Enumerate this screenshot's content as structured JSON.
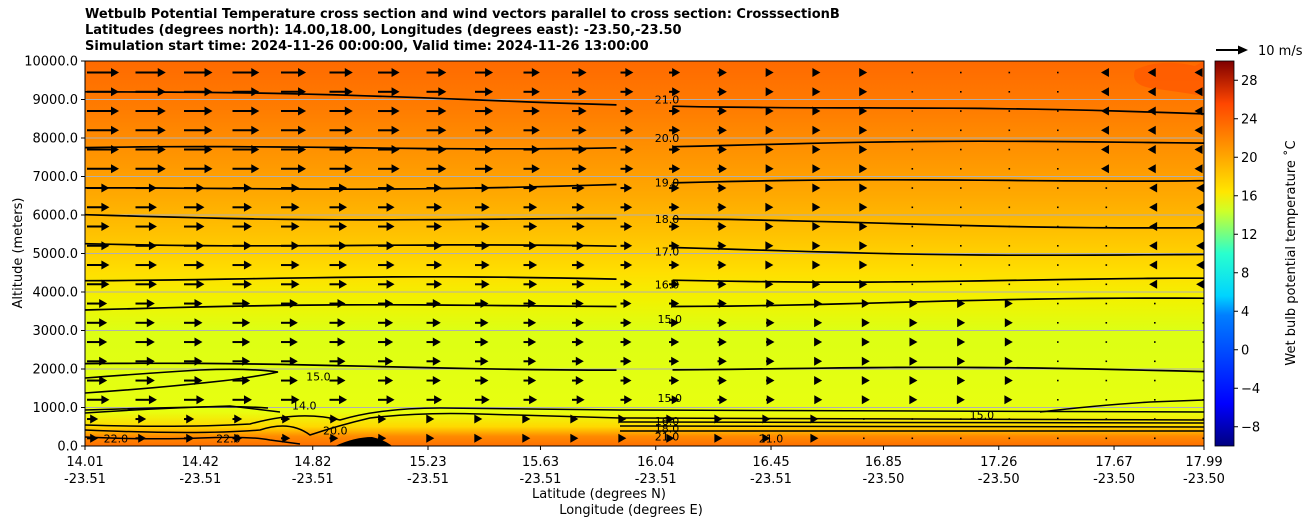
{
  "chart_data": {
    "type": "heatmap",
    "title_lines": [
      "Wetbulb Potential Temperature cross section and wind vectors parallel to cross section: CrosssectionB",
      "Latitudes (degrees north): 14.00,18.00, Longitudes (degrees east): -23.50,-23.50",
      "Simulation start time: 2024-11-26 00:00:00, Valid time: 2024-11-26 13:00:00"
    ],
    "ylabel": "Altitude (meters)",
    "xlabel_lat": "Latitude (degrees N)",
    "xlabel_lon": "Longitude (degrees E)",
    "ylim": [
      0,
      10000
    ],
    "y_ticks": [
      0,
      1000,
      2000,
      3000,
      4000,
      5000,
      6000,
      7000,
      8000,
      9000,
      10000
    ],
    "y_tick_labels": [
      "0.0",
      "1000.0",
      "2000.0",
      "3000.0",
      "4000.0",
      "5000.0",
      "6000.0",
      "7000.0",
      "8000.0",
      "9000.0",
      "10000.0"
    ],
    "x_ticks": [
      {
        "lat": "14.01",
        "lon": "-23.51",
        "pos": 14.01
      },
      {
        "lat": "14.42",
        "lon": "-23.51",
        "pos": 14.42
      },
      {
        "lat": "14.82",
        "lon": "-23.51",
        "pos": 14.82
      },
      {
        "lat": "15.23",
        "lon": "-23.51",
        "pos": 15.23
      },
      {
        "lat": "15.63",
        "lon": "-23.51",
        "pos": 15.63
      },
      {
        "lat": "16.04",
        "lon": "-23.51",
        "pos": 16.04
      },
      {
        "lat": "16.45",
        "lon": "-23.51",
        "pos": 16.45
      },
      {
        "lat": "16.85",
        "lon": "-23.50",
        "pos": 16.85
      },
      {
        "lat": "17.26",
        "lon": "-23.50",
        "pos": 17.26
      },
      {
        "lat": "17.67",
        "lon": "-23.50",
        "pos": 17.67
      },
      {
        "lat": "17.99",
        "lon": "-23.50",
        "pos": 17.99
      }
    ],
    "xlim": [
      14.01,
      17.99
    ],
    "colorbar": {
      "label": "Wet bulb potential temperature ˚C",
      "range": [
        -10,
        30
      ],
      "ticks": [
        -8,
        -4,
        0,
        4,
        8,
        12,
        16,
        20,
        24,
        28
      ],
      "tick_labels": [
        "−8",
        "−4",
        "0",
        "4",
        "8",
        "12",
        "16",
        "20",
        "24",
        "28"
      ]
    },
    "quiver_key": {
      "label": "10 m/s",
      "value": 10
    },
    "contours": [
      {
        "level": "21.0",
        "alt_left": 9200,
        "alt_right": 8600
      },
      {
        "level": "20.0",
        "alt_left": 7700,
        "alt_right": 7900
      },
      {
        "level": "19.0",
        "alt_left": 6650,
        "alt_right": 6950
      },
      {
        "level": "18.0",
        "alt_left": 6000,
        "alt_right": 5700
      },
      {
        "level": "17.0",
        "alt_left": 5300,
        "alt_right": 4950
      },
      {
        "level": "16.0",
        "alt_left": 4350,
        "alt_right": 4300
      },
      {
        "level": "15.0",
        "alt_left": 3550,
        "alt_right": 3800
      },
      {
        "level": "15.0",
        "alt_left": 2100,
        "alt_right": 1950
      }
    ],
    "inline_labels": [
      {
        "text": "21.0",
        "lat": 16.08,
        "alt": 9000
      },
      {
        "text": "20.0",
        "lat": 16.08,
        "alt": 8000
      },
      {
        "text": "19.0",
        "lat": 16.08,
        "alt": 6850
      },
      {
        "text": "18.0",
        "lat": 16.08,
        "alt": 5900
      },
      {
        "text": "17.0",
        "lat": 16.08,
        "alt": 5050
      },
      {
        "text": "16.0",
        "lat": 16.08,
        "alt": 4200
      },
      {
        "text": "15.0",
        "lat": 16.09,
        "alt": 3300
      },
      {
        "text": "15.0",
        "lat": 16.09,
        "alt": 1250
      },
      {
        "text": "16.0",
        "lat": 16.08,
        "alt": 650
      },
      {
        "text": "18.0",
        "lat": 16.08,
        "alt": 450
      },
      {
        "text": "21.0",
        "lat": 16.08,
        "alt": 250
      },
      {
        "text": "22.0",
        "lat": 14.12,
        "alt": 200
      },
      {
        "text": "22.0",
        "lat": 14.52,
        "alt": 200
      },
      {
        "text": "15.0",
        "lat": 14.84,
        "alt": 1800
      },
      {
        "text": "14.0",
        "lat": 14.79,
        "alt": 1050
      },
      {
        "text": "20.0",
        "lat": 14.9,
        "alt": 400
      },
      {
        "text": "21.0",
        "lat": 16.45,
        "alt": 200
      },
      {
        "text": "15.0",
        "lat": 17.2,
        "alt": 800
      }
    ]
  }
}
